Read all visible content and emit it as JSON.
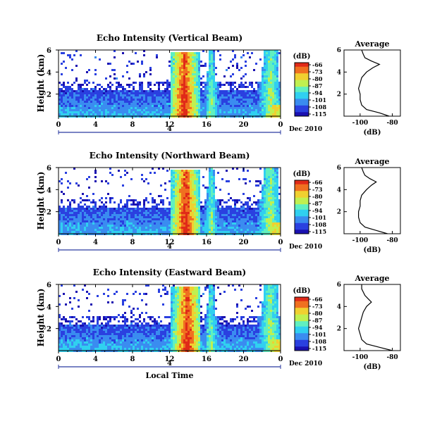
{
  "chart_data": [
    {
      "type": "heatmap",
      "title": "Echo Intensity (Vertical Beam)",
      "ylabel": "Height (km)",
      "xticks": [
        "0",
        "4",
        "8",
        "12",
        "16",
        "20",
        "0"
      ],
      "xlim": [
        0,
        24
      ],
      "yticks": [
        "2",
        "4",
        "6"
      ],
      "ylim": [
        0,
        6
      ],
      "date_marker": "4",
      "date_label": "Dec 2010",
      "colorbar_label": "(dB)",
      "colorbar_ticks": [
        "-66",
        "-73",
        "-80",
        "-87",
        "-94",
        "-101",
        "-108",
        "-115"
      ],
      "average_title": "Average",
      "average_xlabel": "(dB)",
      "average_xticks": [
        "-100",
        "-80"
      ],
      "average_yticks": [
        "2",
        "4",
        "6"
      ],
      "average_profile": {
        "height_km": [
          0.0,
          0.3,
          0.6,
          1.0,
          1.5,
          2.0,
          2.5,
          3.0,
          3.5,
          4.0,
          4.4,
          4.7,
          5.0,
          5.3,
          5.6,
          6.0
        ],
        "db": [
          -82,
          -88,
          -96,
          -99,
          -100,
          -100,
          -101,
          -100,
          -99,
          -96,
          -92,
          -88,
          -93,
          -97,
          -98,
          -99
        ]
      }
    },
    {
      "type": "heatmap",
      "title": "Echo Intensity (Northward Beam)",
      "ylabel": "Height (km)",
      "xticks": [
        "0",
        "4",
        "8",
        "12",
        "16",
        "20",
        "0"
      ],
      "xlim": [
        0,
        24
      ],
      "yticks": [
        "2",
        "4",
        "6"
      ],
      "ylim": [
        0,
        6
      ],
      "date_marker": "4",
      "date_label": "Dec 2010",
      "colorbar_label": "(dB)",
      "colorbar_ticks": [
        "-66",
        "-73",
        "-80",
        "-87",
        "-94",
        "-101",
        "-108",
        "-115"
      ],
      "average_title": "Average",
      "average_xlabel": "(dB)",
      "average_xticks": [
        "-100",
        "-80"
      ],
      "average_yticks": [
        "2",
        "4",
        "6"
      ],
      "average_profile": {
        "height_km": [
          0.0,
          0.3,
          0.6,
          1.0,
          1.5,
          2.0,
          2.5,
          3.0,
          3.5,
          4.0,
          4.4,
          4.7,
          5.0,
          5.3,
          5.6,
          6.0
        ],
        "db": [
          -83,
          -90,
          -97,
          -100,
          -101,
          -101,
          -100,
          -100,
          -99,
          -96,
          -93,
          -90,
          -94,
          -97,
          -98,
          -99
        ]
      }
    },
    {
      "type": "heatmap",
      "title": "Echo Intensity (Eastward Beam)",
      "ylabel": "Height (km)",
      "xticks": [
        "0",
        "4",
        "8",
        "12",
        "16",
        "20",
        "0"
      ],
      "xlim": [
        0,
        24
      ],
      "yticks": [
        "2",
        "4",
        "6"
      ],
      "ylim": [
        0,
        6
      ],
      "date_marker": "4",
      "date_label": "Dec 2010",
      "xlabel": "Local Time",
      "colorbar_label": "(dB)",
      "colorbar_ticks": [
        "-66",
        "-73",
        "-80",
        "-87",
        "-94",
        "-101",
        "-108",
        "-115"
      ],
      "average_title": "Average",
      "average_xlabel": "(dB)",
      "average_xticks": [
        "-100",
        "-80"
      ],
      "average_yticks": [
        "2",
        "4",
        "6"
      ],
      "average_profile": {
        "height_km": [
          0.0,
          0.3,
          0.6,
          1.0,
          1.5,
          2.0,
          2.5,
          3.0,
          3.5,
          4.0,
          4.4,
          4.7,
          5.0,
          5.3,
          5.6,
          6.0
        ],
        "db": [
          -80,
          -88,
          -96,
          -99,
          -100,
          -101,
          -100,
          -99,
          -98,
          -96,
          -93,
          -95,
          -97,
          -98,
          -99,
          -99
        ]
      }
    }
  ],
  "colors": {
    "colormap": [
      "#1a10b0",
      "#2a40e0",
      "#3a8cf0",
      "#30d0f0",
      "#60f0c0",
      "#c0f050",
      "#f0d030",
      "#f07020",
      "#e02a18"
    ]
  }
}
